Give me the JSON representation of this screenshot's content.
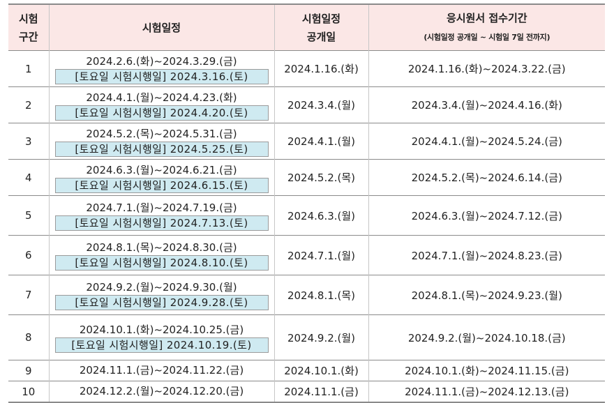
{
  "headers": {
    "round_l1": "시험",
    "round_l2": "구간",
    "schedule": "시험일정",
    "publish_l1": "시험일정",
    "publish_l2": "공개일",
    "apply_l1": "응시원서 접수기간",
    "apply_l2": "(시험일정 공개일 ~ 시험일 7일 전까지)"
  },
  "rows": [
    {
      "round": "1",
      "period": "2024.2.6.(화)~2024.3.29.(금)",
      "saturday": "[토요일 시험시행일] 2024.3.16.(토)",
      "publish": "2024.1.16.(화)",
      "apply": "2024.1.16.(화)~2024.3.22.(금)"
    },
    {
      "round": "2",
      "period": "2024.4.1.(월)~2024.4.23.(화)",
      "saturday": "[토요일 시험시행일] 2024.4.20.(토)",
      "publish": "2024.3.4.(월)",
      "apply": "2024.3.4.(월)~2024.4.16.(화)"
    },
    {
      "round": "3",
      "period": "2024.5.2.(목)~2024.5.31.(금)",
      "saturday": "[토요일 시험시행일] 2024.5.25.(토)",
      "publish": "2024.4.1.(월)",
      "apply": "2024.4.1.(월)~2024.5.24.(금)"
    },
    {
      "round": "4",
      "period": "2024.6.3.(월)~2024.6.21.(금)",
      "saturday": "[토요일 시험시행일] 2024.6.15.(토)",
      "publish": "2024.5.2.(목)",
      "apply": "2024.5.2.(목)~2024.6.14.(금)"
    },
    {
      "round": "5",
      "period": "2024.7.1.(월)~2024.7.19.(금)",
      "saturday": "[토요일 시험시행일] 2024.7.13.(토)",
      "publish": "2024.6.3.(월)",
      "apply": "2024.6.3.(월)~2024.7.12.(금)"
    },
    {
      "round": "6",
      "period": "2024.8.1.(목)~2024.8.30.(금)",
      "saturday": "[토요일 시험시행일] 2024.8.10.(토)",
      "publish": "2024.7.1.(월)",
      "apply": "2024.7.1.(월)~2024.8.23.(금)"
    },
    {
      "round": "7",
      "period": "2024.9.2.(월)~2024.9.30.(월)",
      "saturday": "[토요일 시험시행일] 2024.9.28.(토)",
      "publish": "2024.8.1.(목)",
      "apply": "2024.8.1.(목)~2024.9.23.(월)"
    },
    {
      "round": "8",
      "period": "2024.10.1.(화)~2024.10.25.(금)",
      "saturday": "[토요일 시험시행일] 2024.10.19.(토)",
      "publish": "2024.9.2.(월)",
      "apply": "2024.9.2.(월)~2024.10.18.(금)"
    },
    {
      "round": "9",
      "period": "2024.11.1.(금)~2024.11.22.(금)",
      "publish": "2024.10.1.(화)",
      "apply": "2024.10.1.(화)~2024.11.15.(금)"
    },
    {
      "round": "10",
      "period": "2024.12.2.(월)~2024.12.20.(금)",
      "publish": "2024.11.1.(금)",
      "apply": "2024.11.1.(금)~2024.12.13.(금)"
    }
  ],
  "colors": {
    "header_bg": "#fbe7e6",
    "saturday_bg": "#cfeaf1"
  }
}
